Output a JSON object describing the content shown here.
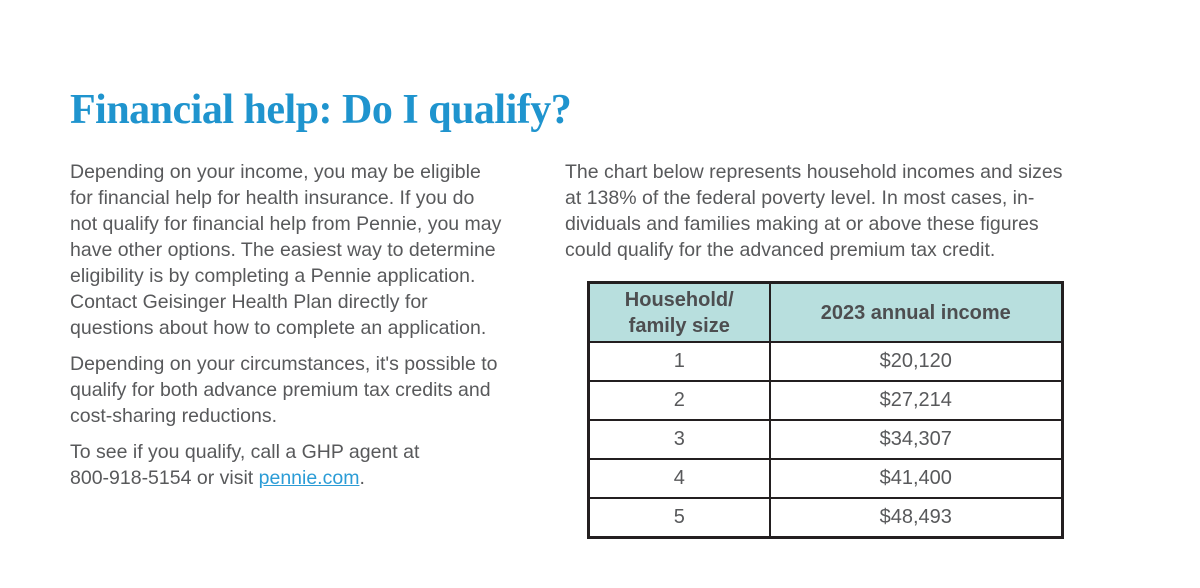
{
  "page": {
    "title": "Financial help: Do I qualify?"
  },
  "left_column": {
    "paragraph1": "Depending on your income, you may be eligible\nfor financial help for health insurance. If you do\nnot qualify for financial help from Pennie, you may\nhave other options. The easiest way to determine\neligibility is by completing a Pennie application.\nContact Geisinger Health Plan directly for\nquestions about how to complete an application.",
    "paragraph2": "Depending on your circumstances, it's possible to\nqualify for both advance premium tax credits and\ncost-sharing reductions.",
    "paragraph3": {
      "text_before_link": "To see if you qualify, call a GHP agent at\n800-918-5154 or visit ",
      "link_text": "pennie.com",
      "text_after_link": "."
    }
  },
  "right_column": {
    "intro": "The chart below represents household incomes and sizes\nat 138% of the federal poverty level. In most cases, in-\ndividuals and families making at or above these figures\ncould qualify for the advanced premium tax credit."
  },
  "table": {
    "headers": [
      "Household/\nfamily size",
      "2023 annual income"
    ],
    "rows": [
      {
        "size": "1",
        "income": "$20,120"
      },
      {
        "size": "2",
        "income": "$27,214"
      },
      {
        "size": "3",
        "income": "$34,307"
      },
      {
        "size": "4",
        "income": "$41,400"
      },
      {
        "size": "5",
        "income": "$48,493"
      }
    ]
  },
  "colors": {
    "title_blue": "#1f94ce",
    "link_blue": "#2b9cd6",
    "body_gray": "#58595b",
    "table_header_teal": "#b8dfde",
    "table_border": "#231f20"
  }
}
